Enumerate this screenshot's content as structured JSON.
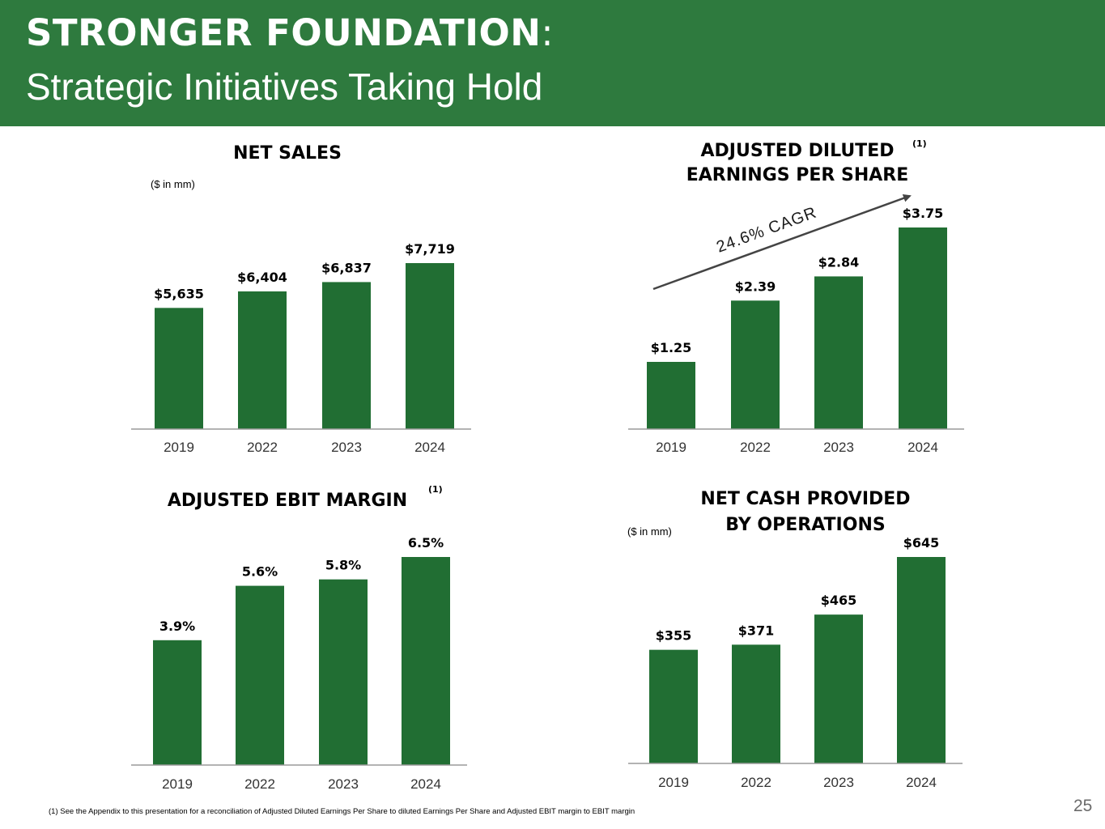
{
  "header": {
    "title_main": "STRONGER FOUNDATION",
    "title_colon": ":",
    "title_sub": "Strategic Initiatives Taking Hold"
  },
  "colors": {
    "header_bg": "#2e7a3e",
    "bar": "#216e33",
    "axis": "#9a9a9a"
  },
  "panels": {
    "net_sales": {
      "title": "NET SALES",
      "unit": "($ in mm)"
    },
    "eps": {
      "title_line1": "ADJUSTED DILUTED",
      "title_line2": "EARNINGS PER SHARE",
      "note": "(1)",
      "cagr": "24.6% CAGR"
    },
    "ebit": {
      "title": "ADJUSTED EBIT MARGIN",
      "note": "(1)"
    },
    "cash": {
      "title_line1": "NET CASH PROVIDED",
      "title_line2": "BY OPERATIONS",
      "unit": "($ in mm)"
    }
  },
  "chart_data": [
    {
      "type": "bar",
      "title": "NET SALES",
      "categories": [
        "2019",
        "2022",
        "2023",
        "2024"
      ],
      "values": [
        5635,
        6404,
        6837,
        7719
      ],
      "labels": [
        "$5,635",
        "$6,404",
        "$6,837",
        "$7,719"
      ],
      "ylabel": "($ in mm)"
    },
    {
      "type": "bar",
      "title": "ADJUSTED DILUTED EARNINGS PER SHARE",
      "categories": [
        "2019",
        "2022",
        "2023",
        "2024"
      ],
      "values": [
        1.25,
        2.39,
        2.84,
        3.75
      ],
      "labels": [
        "$1.25",
        "$2.39",
        "$2.84",
        "$3.75"
      ],
      "annotations": [
        "24.6% CAGR"
      ]
    },
    {
      "type": "bar",
      "title": "ADJUSTED EBIT MARGIN",
      "categories": [
        "2019",
        "2022",
        "2023",
        "2024"
      ],
      "values": [
        3.9,
        5.6,
        5.8,
        6.5
      ],
      "labels": [
        "3.9%",
        "5.6%",
        "5.8%",
        "6.5%"
      ]
    },
    {
      "type": "bar",
      "title": "NET CASH PROVIDED BY OPERATIONS",
      "categories": [
        "2019",
        "2022",
        "2023",
        "2024"
      ],
      "values": [
        355,
        371,
        465,
        645
      ],
      "labels": [
        "$355",
        "$371",
        "$465",
        "$645"
      ],
      "ylabel": "($ in mm)"
    }
  ],
  "footnote": "(1)    See the Appendix to this presentation for a reconciliation of Adjusted Diluted Earnings Per Share to diluted Earnings Per Share and Adjusted EBIT margin to EBIT margin",
  "page_number": "25"
}
